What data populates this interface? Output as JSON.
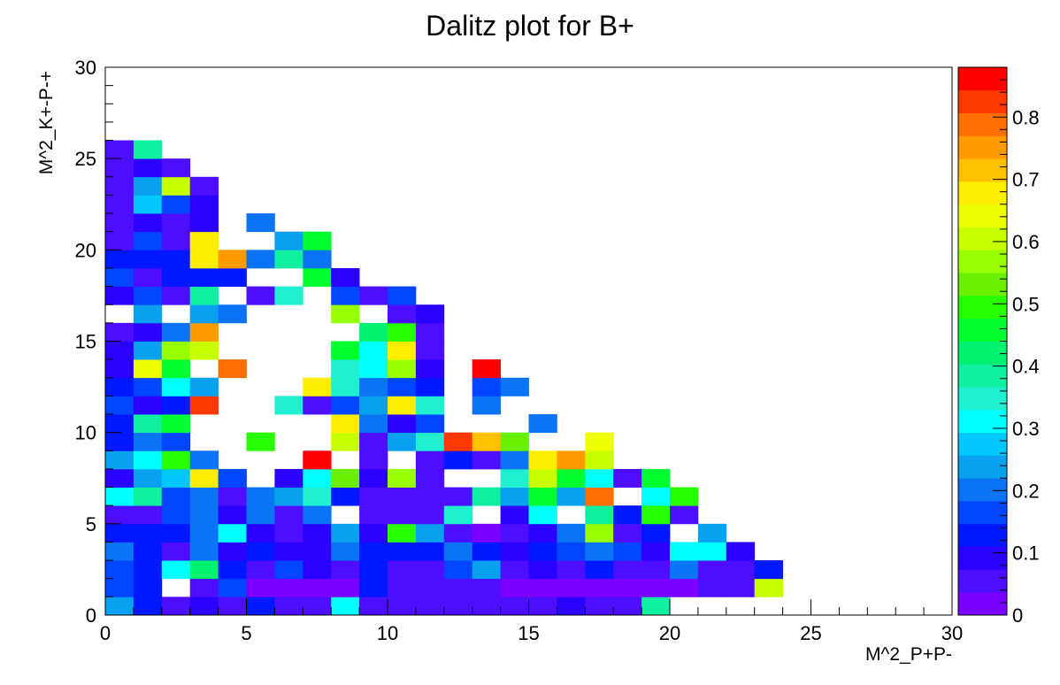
{
  "chart_data": {
    "type": "heatmap",
    "title": "Dalitz plot for B+",
    "xlabel": "M^2_P+P-",
    "ylabel": "M^2_K+-P-+",
    "xlim": [
      0,
      30
    ],
    "ylim": [
      0,
      30
    ],
    "bin_width": 1,
    "x_ticks": [
      "0",
      "5",
      "10",
      "15",
      "20",
      "25",
      "30"
    ],
    "y_ticks": [
      "0",
      "5",
      "10",
      "15",
      "20",
      "25",
      "30"
    ],
    "colorbar": {
      "min": 0,
      "max": 0.88,
      "ticks": [
        "0",
        "0.1",
        "0.2",
        "0.3",
        "0.4",
        "0.5",
        "0.6",
        "0.7",
        "0.8"
      ],
      "palette": [
        "#7a00ff",
        "#4d0dff",
        "#2a00ff",
        "#0018ff",
        "#0046ff",
        "#0a74f5",
        "#0aa0f0",
        "#00c8ff",
        "#00ffff",
        "#20f0d0",
        "#10f0a0",
        "#00f070",
        "#00ff30",
        "#28ff00",
        "#68f000",
        "#98ff00",
        "#c8ff00",
        "#eeff00",
        "#ffee00",
        "#ffc000",
        "#ff9a00",
        "#ff6e00",
        "#ff3a00",
        "#ff0000"
      ]
    },
    "rows": [
      {
        "y": 0,
        "start": 0,
        "values": [
          0.22,
          0.12,
          0.04,
          0.08,
          0.05,
          0.11,
          0.04,
          0.07,
          0.3,
          0.07,
          0.04,
          0.06,
          0.06,
          0.06,
          0.04,
          0.05,
          0.1,
          0.06,
          0.06,
          0.4
        ]
      },
      {
        "y": 1,
        "start": 0,
        "values": [
          0.15,
          0.12,
          null,
          0.06,
          0.16,
          0.03,
          0.03,
          0.03,
          0.03,
          0.12,
          0.04,
          0.07,
          0.04,
          0.06,
          0.03,
          0.03,
          0.03,
          0.03,
          0.03,
          0.03,
          0.03,
          0.04,
          0.05,
          0.62
        ]
      },
      {
        "y": 2,
        "start": 0,
        "values": [
          0.18,
          0.12,
          0.3,
          0.43,
          0.12,
          0.04,
          0.15,
          0.08,
          0.07,
          0.12,
          0.05,
          0.06,
          0.16,
          0.25,
          0.04,
          0.08,
          0.04,
          0.14,
          0.07,
          0.06,
          0.2,
          0.06,
          0.06,
          0.12
        ]
      },
      {
        "y": 3,
        "start": 0,
        "values": [
          0.2,
          0.13,
          0.05,
          0.2,
          0.08,
          0.12,
          0.08,
          0.09,
          0.2,
          0.12,
          0.12,
          0.12,
          0.2,
          0.13,
          0.1,
          0.13,
          0.15,
          0.2,
          0.16,
          0.08,
          0.3,
          0.3,
          0.1
        ]
      },
      {
        "y": 4,
        "start": 0,
        "values": [
          0.14,
          0.14,
          0.11,
          0.2,
          0.3,
          0.1,
          0.05,
          0.08,
          0.25,
          0.08,
          0.48,
          0.22,
          0.05,
          0.03,
          0.05,
          0.1,
          0.2,
          0.57,
          0.07,
          0.14,
          null,
          0.25
        ]
      },
      {
        "y": 5,
        "start": 0,
        "values": [
          0.04,
          0.04,
          0.15,
          0.2,
          0.1,
          0.2,
          0.04,
          0.2,
          null,
          0.04,
          0.07,
          0.04,
          0.33,
          null,
          0.08,
          0.3,
          null,
          0.4,
          0.12,
          0.5,
          0.07
        ]
      },
      {
        "y": 6,
        "start": 0,
        "values": [
          0.32,
          0.4,
          0.15,
          0.2,
          0.07,
          0.2,
          0.25,
          0.36,
          0.12,
          0.05,
          0.04,
          0.07,
          0.05,
          0.38,
          0.25,
          0.45,
          0.22,
          0.78,
          null,
          0.3,
          0.5
        ]
      },
      {
        "y": 7,
        "start": 0,
        "values": [
          0.09,
          0.24,
          0.28,
          0.68,
          0.15,
          null,
          0.09,
          0.3,
          0.53,
          0.08,
          0.56,
          0.07,
          null,
          null,
          0.36,
          0.6,
          0.45,
          0.3,
          0.07,
          0.47
        ]
      },
      {
        "y": 8,
        "start": 0,
        "values": [
          0.22,
          0.32,
          0.5,
          0.2,
          null,
          null,
          null,
          0.88,
          null,
          0.05,
          null,
          0.05,
          0.13,
          0.07,
          0.2,
          0.68,
          0.76,
          0.6
        ]
      },
      {
        "y": 9,
        "start": 0,
        "values": [
          0.12,
          0.2,
          0.15,
          null,
          null,
          0.5,
          null,
          null,
          0.62,
          0.05,
          0.25,
          0.35,
          0.84,
          0.73,
          0.52,
          null,
          null,
          0.65
        ]
      },
      {
        "y": 10,
        "start": 0,
        "values": [
          0.12,
          0.4,
          0.45,
          null,
          null,
          null,
          null,
          null,
          0.68,
          0.2,
          0.1,
          0.15,
          null,
          null,
          null,
          0.2
        ]
      },
      {
        "y": 11,
        "start": 0,
        "values": [
          0.18,
          0.09,
          0.12,
          0.82,
          null,
          null,
          0.33,
          0.05,
          0.15,
          0.25,
          0.67,
          0.33,
          null,
          0.2
        ]
      },
      {
        "y": 12,
        "start": 0,
        "values": [
          0.14,
          0.18,
          0.3,
          0.22,
          null,
          null,
          null,
          0.67,
          0.35,
          0.2,
          0.15,
          0.14,
          null,
          0.15,
          0.2
        ]
      },
      {
        "y": 13,
        "start": 0,
        "values": [
          0.08,
          0.65,
          0.45,
          null,
          0.78,
          null,
          null,
          null,
          0.35,
          0.3,
          0.55,
          0.1,
          null,
          0.88
        ]
      },
      {
        "y": 14,
        "start": 0,
        "values": [
          0.08,
          0.22,
          0.55,
          0.6,
          null,
          null,
          null,
          null,
          0.47,
          0.3,
          0.68,
          0.05
        ]
      },
      {
        "y": 15,
        "start": 0,
        "values": [
          0.07,
          0.09,
          0.2,
          0.74,
          null,
          null,
          null,
          null,
          null,
          0.43,
          0.48,
          0.06
        ]
      },
      {
        "y": 16,
        "start": 0,
        "values": [
          null,
          0.25,
          null,
          0.25,
          0.2,
          null,
          null,
          null,
          0.58,
          null,
          0.05,
          0.1
        ]
      },
      {
        "y": 17,
        "start": 0,
        "values": [
          0.1,
          0.15,
          0.06,
          0.38,
          null,
          0.07,
          0.33,
          null,
          0.15,
          0.05,
          0.16
        ]
      },
      {
        "y": 18,
        "start": 0,
        "values": [
          0.15,
          0.06,
          0.13,
          0.13,
          0.12,
          null,
          null,
          0.47,
          0.1
        ]
      },
      {
        "y": 19,
        "start": 0,
        "values": [
          0.12,
          0.12,
          0.12,
          0.67,
          0.75,
          0.2,
          0.4,
          0.2
        ]
      },
      {
        "y": 20,
        "start": 0,
        "values": [
          0.06,
          0.15,
          0.05,
          0.67,
          null,
          null,
          0.25,
          0.45
        ]
      },
      {
        "y": 21,
        "start": 0,
        "values": [
          0.07,
          0.09,
          0.06,
          0.1,
          null,
          0.2
        ]
      },
      {
        "y": 22,
        "start": 0,
        "values": [
          0.07,
          0.28,
          0.18,
          0.1
        ]
      },
      {
        "y": 23,
        "start": 0,
        "values": [
          0.06,
          0.24,
          0.62,
          0.07
        ]
      },
      {
        "y": 24,
        "start": 0,
        "values": [
          0.05,
          0.1,
          0.04
        ]
      },
      {
        "y": 25,
        "start": 0,
        "values": [
          0.07,
          0.4
        ]
      }
    ]
  }
}
